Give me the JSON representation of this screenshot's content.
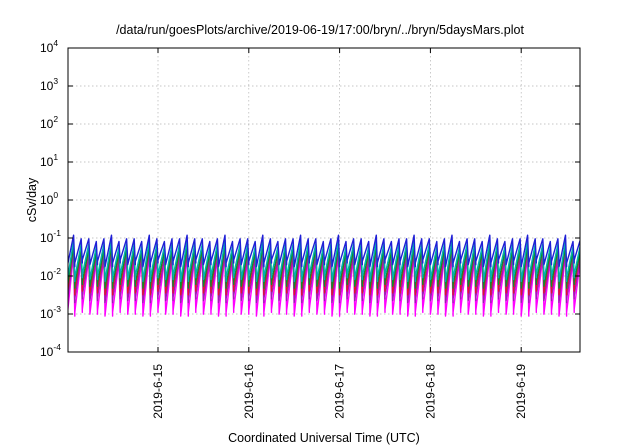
{
  "chart_data": {
    "type": "line",
    "title": "/data/run/goesPlots/archive/2019-06-19/17:00/bryn/../bryn/5daysMars.plot",
    "xlabel": "Coordinated Universal Time (UTC)",
    "ylabel": "cSv/day",
    "yscale": "log",
    "ylim": [
      0.0001,
      10000
    ],
    "xlim": [
      "2019-06-14 00:00",
      "2019-06-19 17:00"
    ],
    "grid": true,
    "y_ticks": [
      {
        "base": "10",
        "exp": "-4"
      },
      {
        "base": "10",
        "exp": "-3"
      },
      {
        "base": "10",
        "exp": "-2"
      },
      {
        "base": "10",
        "exp": "-1"
      },
      {
        "base": "10",
        "exp": "0"
      },
      {
        "base": "10",
        "exp": "1"
      },
      {
        "base": "10",
        "exp": "2"
      },
      {
        "base": "10",
        "exp": "3"
      },
      {
        "base": "10",
        "exp": "4"
      }
    ],
    "x_ticks": [
      "2019-6-15",
      "2019-6-16",
      "2019-6-17",
      "2019-6-18",
      "2019-6-19"
    ],
    "cycle_hours": 2,
    "series": [
      {
        "color": "#1f1fd6",
        "peak": 0.095,
        "trough": 0.022
      },
      {
        "color": "#00b0b0",
        "peak": 0.07,
        "trough": 0.009
      },
      {
        "color": "#0a8f2a",
        "peak": 0.05,
        "trough": 0.006
      },
      {
        "color": "#e0142a",
        "peak": 0.055,
        "trough": 0.004
      },
      {
        "color": "#9b1fb0",
        "peak": 0.035,
        "trough": 0.0025
      },
      {
        "color": "#ff00ff",
        "peak": 0.03,
        "trough": 0.0011
      }
    ]
  }
}
